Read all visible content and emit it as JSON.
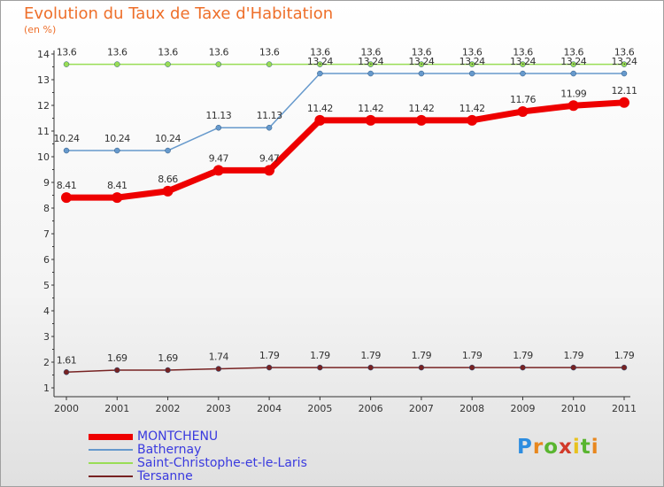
{
  "title": "Evolution du Taux de Taxe d'Habitation",
  "unit_label": "(en %)",
  "logo_text": "Proxiti",
  "chart_data": {
    "type": "line",
    "x": [
      "2000",
      "2001",
      "2002",
      "2003",
      "2004",
      "2005",
      "2006",
      "2007",
      "2008",
      "2009",
      "2010",
      "2011"
    ],
    "ylim": [
      1,
      14
    ],
    "yticks": [
      1,
      2,
      3,
      4,
      5,
      6,
      7,
      8,
      9,
      10,
      11,
      12,
      13,
      14
    ],
    "grid": false,
    "legend_position": "bottom-left",
    "series": [
      {
        "name": "Saint-Christophe-et-le-Laris",
        "color": "#99dd55",
        "width": 1.5,
        "values": [
          13.6,
          13.6,
          13.6,
          13.6,
          13.6,
          13.6,
          13.6,
          13.6,
          13.6,
          13.6,
          13.6,
          13.6
        ],
        "labels": [
          "13.6",
          "13.6",
          "13.6",
          "13.6",
          "13.6",
          "13.6",
          "13.6",
          "13.6",
          "13.6",
          "13.6",
          "13.6",
          "13.6"
        ]
      },
      {
        "name": "Bathernay",
        "color": "#6699cc",
        "width": 1.5,
        "values": [
          10.24,
          10.24,
          10.24,
          11.13,
          11.13,
          13.24,
          13.24,
          13.24,
          13.24,
          13.24,
          13.24,
          13.24
        ],
        "labels": [
          "10.24",
          "10.24",
          "10.24",
          "11.13",
          "11.13",
          "13.24",
          "13.24",
          "13.24",
          "13.24",
          "13.24",
          "13.24",
          "13.24"
        ]
      },
      {
        "name": "Tersanne",
        "color": "#772222",
        "width": 1.5,
        "values": [
          1.61,
          1.69,
          1.69,
          1.74,
          1.79,
          1.79,
          1.79,
          1.79,
          1.79,
          1.79,
          1.79,
          1.79
        ],
        "labels": [
          "1.61",
          "1.69",
          "1.69",
          "1.74",
          "1.79",
          "1.79",
          "1.79",
          "1.79",
          "1.79",
          "1.79",
          "1.79",
          "1.79"
        ]
      },
      {
        "name": "MONTCHENU",
        "color": "#ee0000",
        "width": 7,
        "values": [
          8.41,
          8.41,
          8.66,
          9.47,
          9.47,
          11.42,
          11.42,
          11.42,
          11.42,
          11.76,
          11.99,
          12.11
        ],
        "labels": [
          "8.41",
          "8.41",
          "8.66",
          "9.47",
          "9.47",
          "11.42",
          "11.42",
          "11.42",
          "11.42",
          "11.76",
          "11.99",
          "12.11"
        ]
      }
    ],
    "legend": [
      {
        "name": "MONTCHENU",
        "color": "#ee0000",
        "width": 7
      },
      {
        "name": "Bathernay",
        "color": "#6699cc",
        "width": 1.5
      },
      {
        "name": "Saint-Christophe-et-le-Laris",
        "color": "#99dd55",
        "width": 1.5
      },
      {
        "name": "Tersanne",
        "color": "#772222",
        "width": 1.5
      }
    ]
  }
}
